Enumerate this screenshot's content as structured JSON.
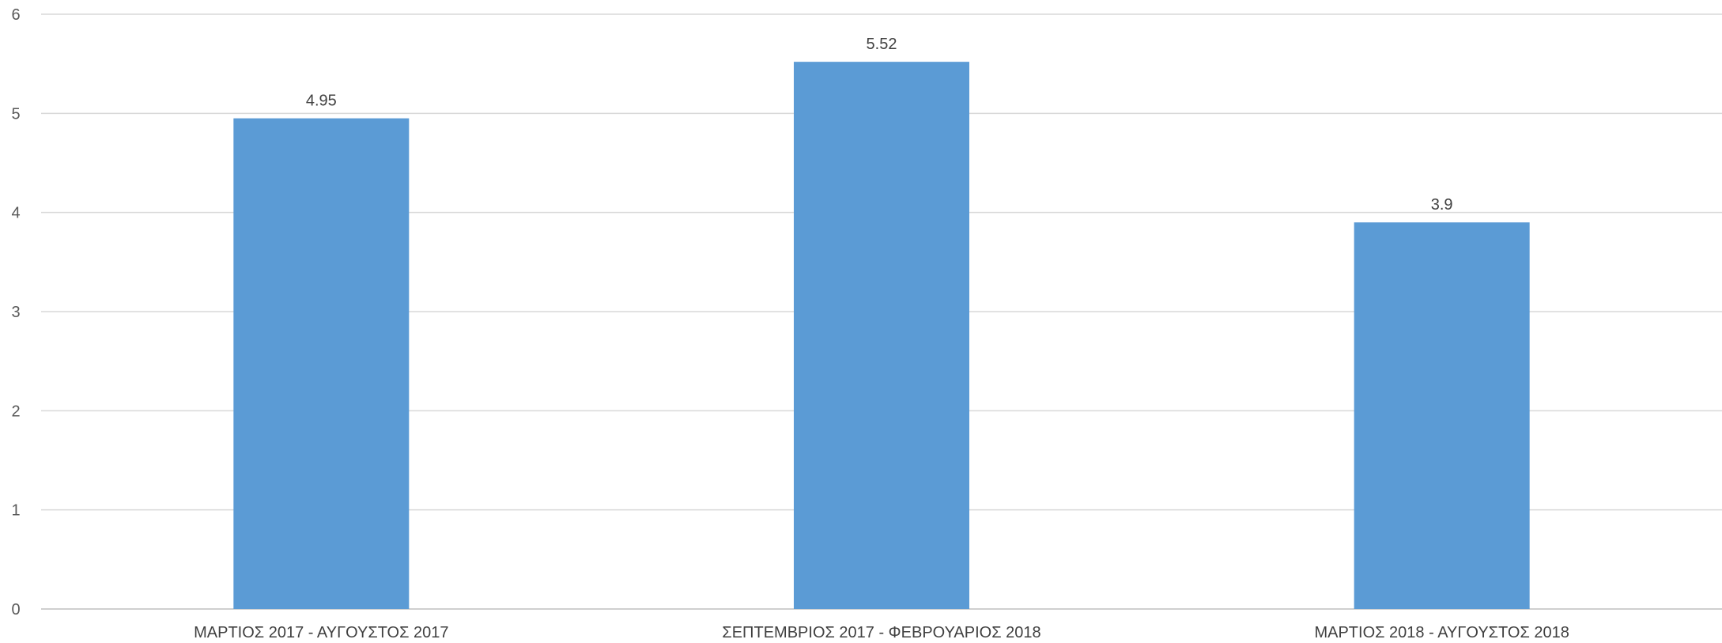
{
  "chart_data": {
    "type": "bar",
    "title": "",
    "xlabel": "",
    "ylabel": "",
    "categories": [
      "ΜΑΡΤΙΟΣ 2017 - ΑΥΓΟΥΣΤΟΣ 2017",
      "ΣΕΠΤΕΜΒΡΙΟΣ 2017 - ΦΕΒΡΟΥΑΡΙΟΣ 2018",
      "ΜΑΡΤΙΟΣ 2018 - ΑΥΓΟΥΣΤΟΣ 2018"
    ],
    "values": [
      4.95,
      5.52,
      3.9
    ],
    "value_labels": [
      "4.95",
      "5.52",
      "3.9"
    ],
    "ylim": [
      0,
      6
    ],
    "yticks": [
      "0",
      "1",
      "2",
      "3",
      "4",
      "5",
      "6"
    ],
    "grid": true,
    "legend": "none",
    "bar_color": "#5b9bd5"
  }
}
